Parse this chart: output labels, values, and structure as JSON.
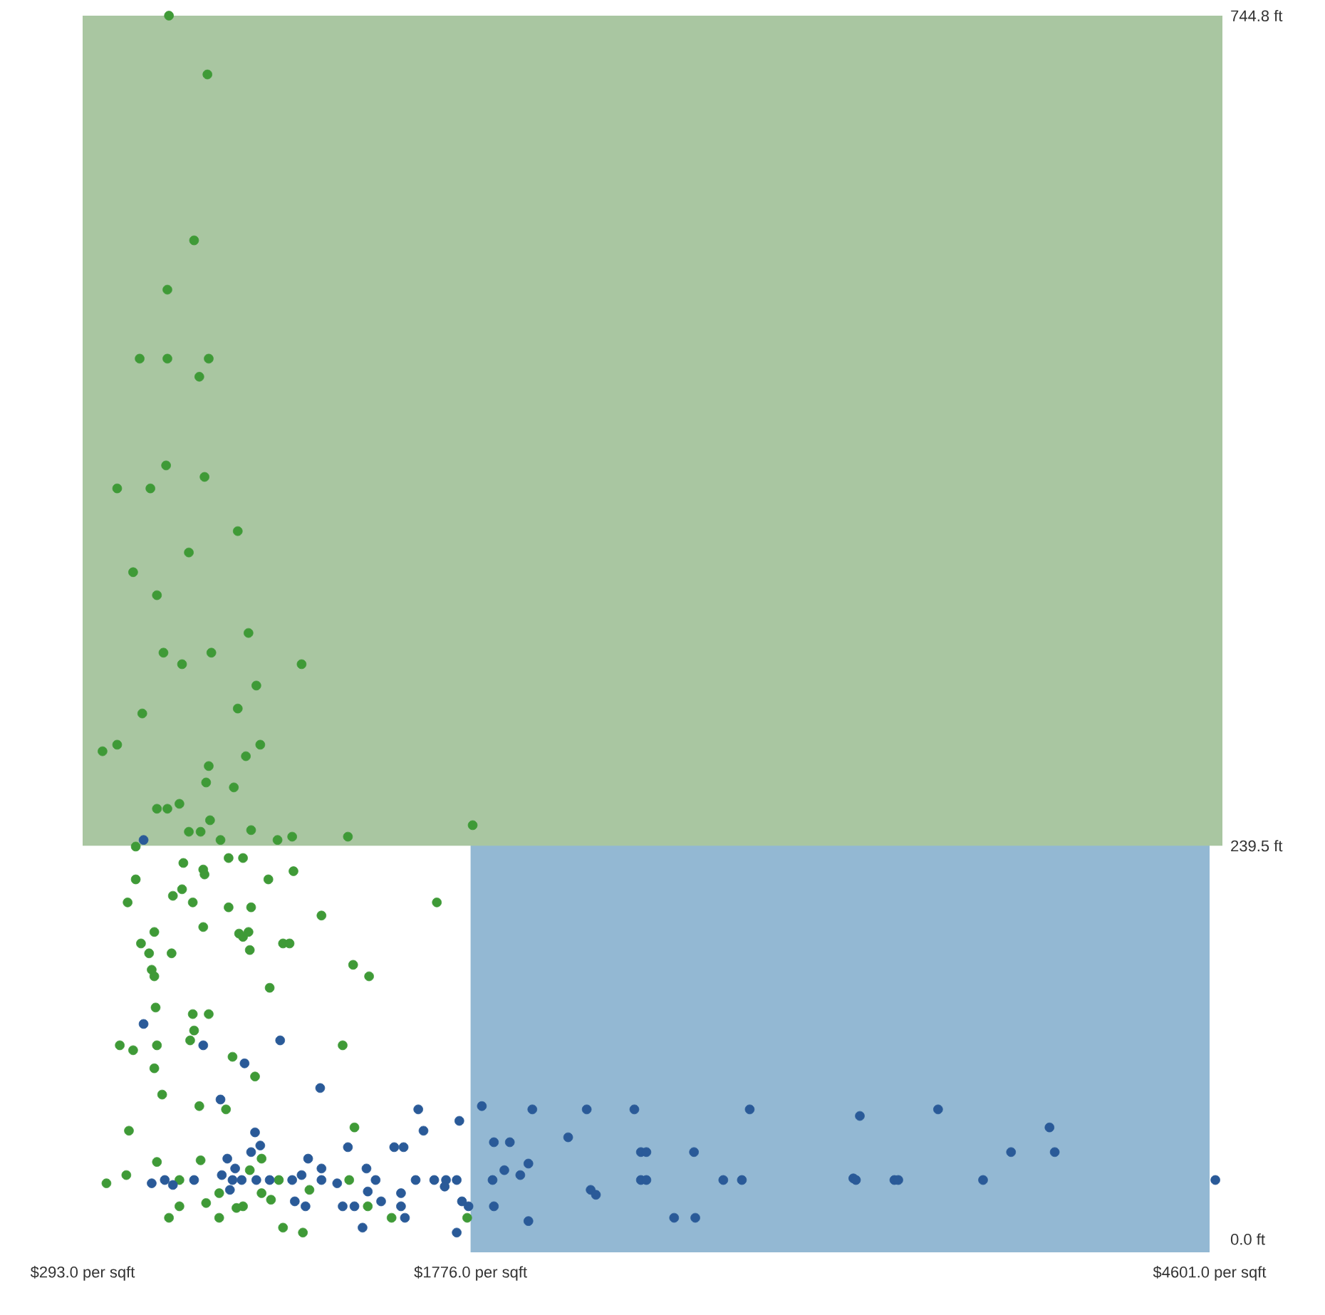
{
  "chart_data": {
    "type": "scatter",
    "marker": "circle",
    "xlim": [
      293,
      4650
    ],
    "ylim": [
      -8,
      744.8
    ],
    "xticks": [
      {
        "value": 293,
        "label": "$293.0 per sqft"
      },
      {
        "value": 1776,
        "label": "$1776.0 per sqft"
      },
      {
        "value": 4601,
        "label": "$4601.0 per sqft"
      }
    ],
    "yticks": [
      {
        "value": 0,
        "label": "0.0 ft"
      },
      {
        "value": 239.5,
        "label": "239.5 ft"
      },
      {
        "value": 744.8,
        "label": "744.8 ft"
      }
    ],
    "bands": [
      {
        "axis": "x",
        "from": 1776,
        "to": 4601,
        "color": "#93b8d3"
      },
      {
        "axis": "y",
        "from": 239.5,
        "to": 744.8,
        "color": "#a9c6a1"
      }
    ],
    "series": [
      {
        "color": "#3f9a37",
        "x": [
          623,
          770,
          719,
          617,
          511,
          617,
          775,
          739,
          612,
          425,
          552,
          759,
          886,
          699,
          486,
          577,
          927,
          602,
          673,
          785,
          1130,
          957,
          521,
          886,
          369,
          425,
          972,
          917,
          775,
          765,
          871,
          577,
          617,
          663,
          780,
          699,
          744,
          820,
          937,
          1038,
          1094,
          1307,
          1784,
          496,
          678,
          754,
          759,
          851,
          906,
          1003,
          1099,
          496,
          465,
          638,
          673,
          714,
          851,
          937,
          1647,
          1206,
          567,
          754,
          891,
          927,
          906,
          932,
          1059,
          1084,
          516,
          547,
          633,
          557,
          567,
          1327,
          1388,
          1008,
          572,
          714,
          775,
          719,
          704,
          435,
          486,
          577,
          1287,
          567,
          866,
          952,
          597,
          739,
          841,
          470,
          1332,
          577,
          744,
          460,
          384,
          663,
          932,
          977,
          977,
          1013,
          815,
          1160,
          1312,
          1383,
          663,
          765,
          881,
          906,
          623,
          815,
          1059,
          1135,
          1474,
          1763,
          1043
        ],
        "values": [
          744.8,
          709,
          608,
          578,
          536,
          536,
          536,
          525,
          471,
          457,
          457,
          464,
          431,
          418,
          406,
          392,
          369,
          357,
          350,
          357,
          350,
          337,
          320,
          323,
          297,
          301,
          301,
          294,
          288,
          278,
          275,
          262,
          262,
          265,
          255,
          248,
          248,
          243,
          249,
          243,
          245,
          245,
          252,
          239,
          229,
          225,
          222,
          232,
          232,
          219,
          224,
          219,
          205,
          209,
          213,
          205,
          202,
          202,
          205,
          197,
          187,
          190,
          186,
          187,
          184,
          176,
          180,
          180,
          180,
          174,
          174,
          164,
          160,
          167,
          160,
          153,
          141,
          137,
          137,
          127,
          121,
          118,
          115,
          118,
          118,
          104,
          111,
          99,
          88,
          81,
          79,
          66,
          68,
          47,
          48,
          39,
          34,
          36,
          42,
          49,
          28,
          24,
          28,
          30,
          36,
          20,
          20,
          22,
          19,
          20,
          13,
          13,
          7,
          4,
          13,
          13,
          36
        ]
      },
      {
        "color": "#2a5a98",
        "x": [
          526,
          526,
          754,
          1048,
          912,
          1201,
          820,
          1576,
          1596,
          1733,
          1819,
          952,
          972,
          937,
          1307,
          1484,
          1520,
          1155,
          846,
          876,
          557,
          607,
          638,
          719,
          825,
          866,
          901,
          957,
          1008,
          1094,
          1130,
          1206,
          1206,
          1266,
          1378,
          1413,
          1566,
          1637,
          1682,
          1723,
          856,
          1104,
          1145,
          1287,
          1332,
          1434,
          1510,
          1510,
          1525,
          1363,
          1723,
          1743,
          1768,
          1383,
          1677,
          2012,
          2220,
          2402,
          2843,
          3264,
          1865,
          1926,
          2149,
          2427,
          2448,
          2630,
          1997,
          1905,
          1966,
          1860,
          2427,
          2448,
          2742,
          2813,
          3239,
          3249,
          2235,
          2255,
          1865,
          1997,
          2554,
          2635,
          3563,
          3989,
          3842,
          4009,
          3396,
          3411,
          3735,
          4623
        ],
        "values": [
          243,
          131,
          118,
          121,
          107,
          92,
          85,
          79,
          66,
          72,
          81,
          65,
          57,
          53,
          56,
          56,
          56,
          49,
          49,
          43,
          34,
          36,
          33,
          36,
          39,
          36,
          36,
          36,
          36,
          36,
          39,
          36,
          43,
          34,
          43,
          36,
          36,
          36,
          36,
          36,
          30,
          23,
          20,
          20,
          20,
          23,
          28,
          20,
          13,
          7,
          4,
          23,
          20,
          29,
          32,
          79,
          79,
          79,
          79,
          75,
          59,
          59,
          62,
          53,
          53,
          53,
          46,
          42,
          39,
          36,
          36,
          36,
          36,
          36,
          37,
          36,
          30,
          27,
          20,
          11,
          13,
          13,
          79,
          68,
          53,
          53,
          36,
          36,
          36,
          36
        ]
      }
    ]
  }
}
